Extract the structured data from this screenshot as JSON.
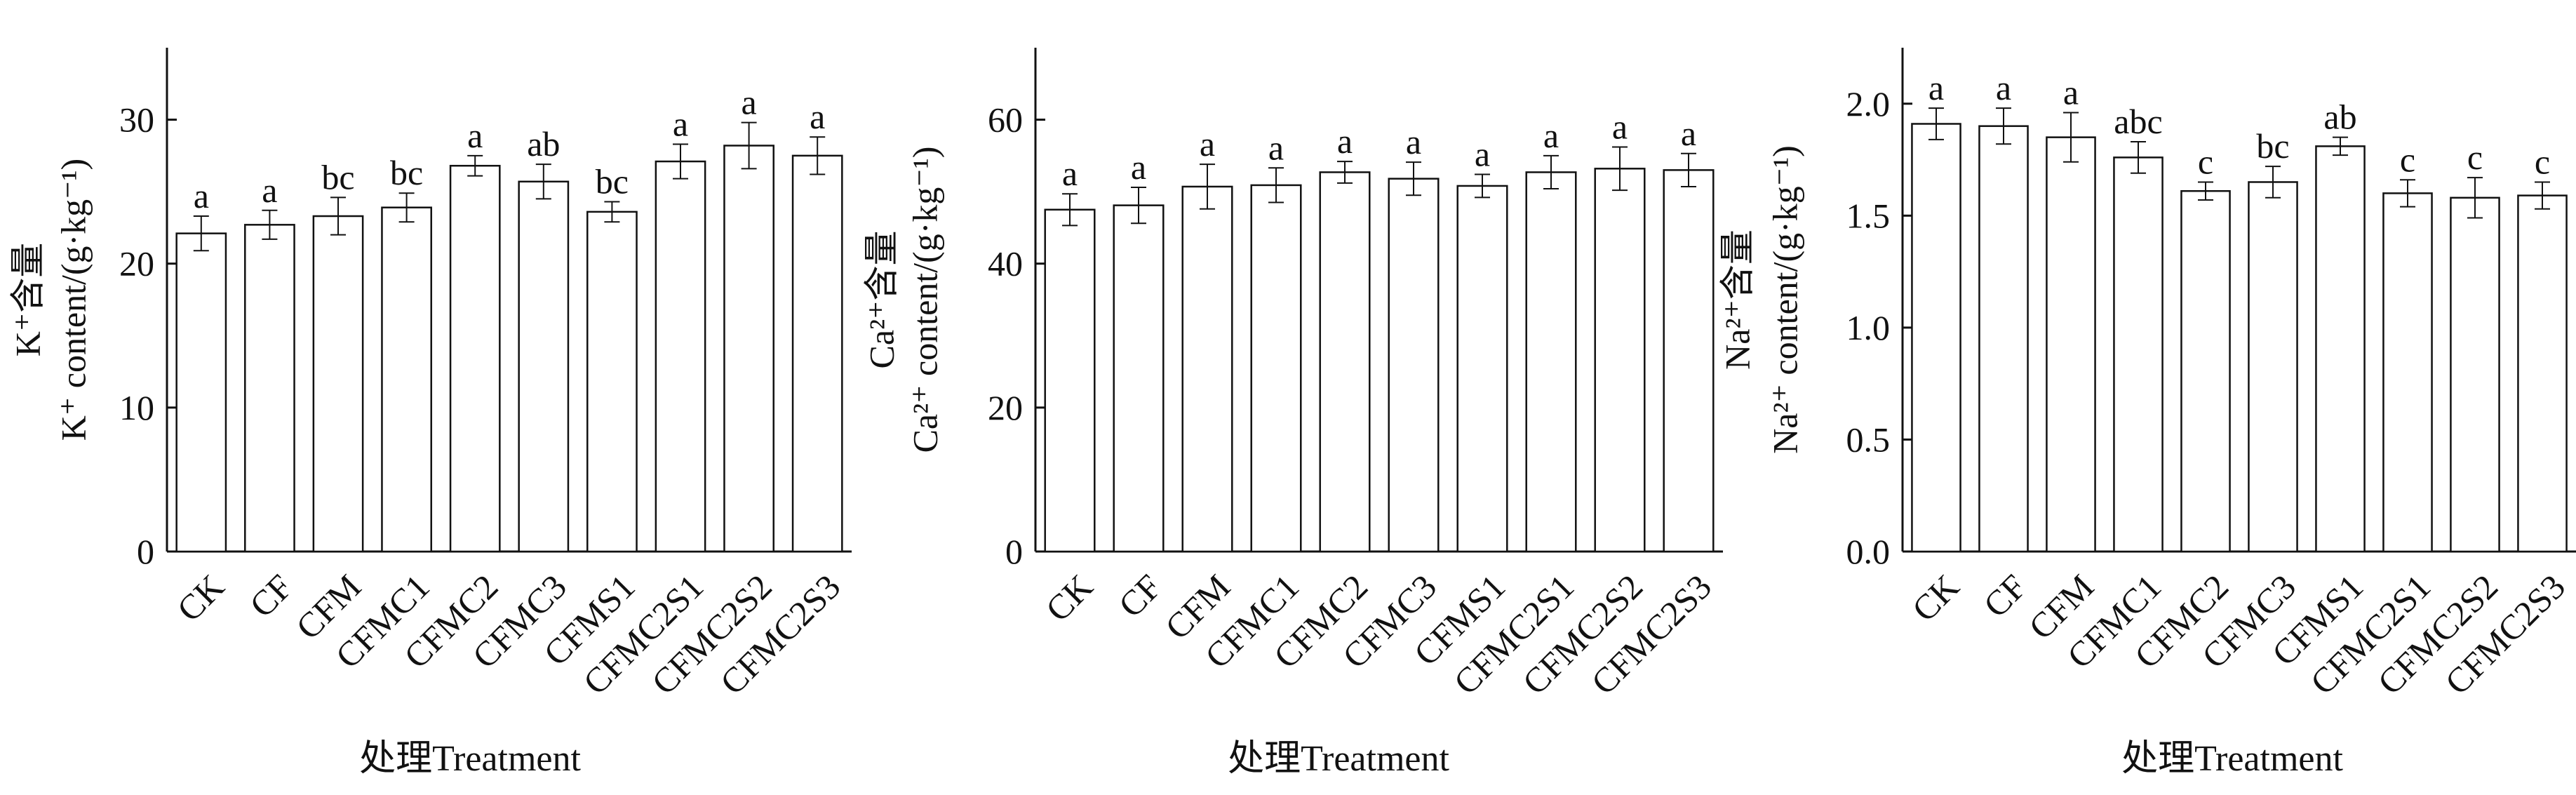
{
  "chart_data": [
    {
      "type": "bar",
      "categories": [
        "CK",
        "CF",
        "CFM",
        "CFMC1",
        "CFMC2",
        "CFMC3",
        "CFMS1",
        "CFMC2S1",
        "CFMC2S2",
        "CFMC2S3"
      ],
      "values": [
        22.1,
        22.7,
        23.3,
        23.9,
        26.8,
        25.7,
        23.6,
        27.1,
        28.2,
        27.5
      ],
      "errors": [
        1.2,
        1.0,
        1.3,
        1.0,
        0.7,
        1.2,
        0.7,
        1.2,
        1.6,
        1.3
      ],
      "letters": [
        "a",
        "a",
        "bc",
        "bc",
        "a",
        "ab",
        "bc",
        "a",
        "a",
        "a"
      ],
      "ylabel_line1": "K⁺含量",
      "ylabel_line2": "K⁺ content/(g·kg⁻¹)",
      "xlabel": "处理Treatment",
      "ylim": [
        0,
        35
      ],
      "yticks": [
        0,
        10,
        20,
        30
      ],
      "ytick_labels": [
        "0",
        "10",
        "20",
        "30"
      ]
    },
    {
      "type": "bar",
      "categories": [
        "CK",
        "CF",
        "CFM",
        "CFMC1",
        "CFMC2",
        "CFMC3",
        "CFMS1",
        "CFMC2S1",
        "CFMC2S2",
        "CFMC2S3"
      ],
      "values": [
        47.5,
        48.1,
        50.7,
        50.9,
        52.7,
        51.8,
        50.8,
        52.7,
        53.2,
        53.0
      ],
      "errors": [
        2.2,
        2.5,
        3.1,
        2.4,
        1.5,
        2.3,
        1.6,
        2.3,
        3.0,
        2.3
      ],
      "letters": [
        "a",
        "a",
        "a",
        "a",
        "a",
        "a",
        "a",
        "a",
        "a",
        "a"
      ],
      "ylabel_line1": "Ca²⁺含量",
      "ylabel_line2": "Ca²⁺ content/(g·kg⁻¹)",
      "xlabel": "处理Treatment",
      "ylim": [
        0,
        70
      ],
      "yticks": [
        0,
        20,
        40,
        60
      ],
      "ytick_labels": [
        "0",
        "20",
        "40",
        "60"
      ]
    },
    {
      "type": "bar",
      "categories": [
        "CK",
        "CF",
        "CFM",
        "CFMC1",
        "CFMC2",
        "CFMC3",
        "CFMS1",
        "CFMC2S1",
        "CFMC2S2",
        "CFMC2S3"
      ],
      "values": [
        1.91,
        1.9,
        1.85,
        1.76,
        1.61,
        1.65,
        1.81,
        1.6,
        1.58,
        1.59
      ],
      "errors": [
        0.07,
        0.08,
        0.11,
        0.07,
        0.04,
        0.07,
        0.04,
        0.06,
        0.09,
        0.06
      ],
      "letters": [
        "a",
        "a",
        "a",
        "abc",
        "c",
        "bc",
        "ab",
        "c",
        "c",
        "c"
      ],
      "ylabel_line1": "Na²⁺含量",
      "ylabel_line2": "Na²⁺ content/(g·kg⁻¹)",
      "xlabel": "处理Treatment",
      "ylim": [
        0,
        2.25
      ],
      "yticks": [
        0,
        0.5,
        1.0,
        1.5,
        2.0
      ],
      "ytick_labels": [
        "0.0",
        "0.5",
        "1.0",
        "1.5",
        "2.0"
      ]
    }
  ]
}
